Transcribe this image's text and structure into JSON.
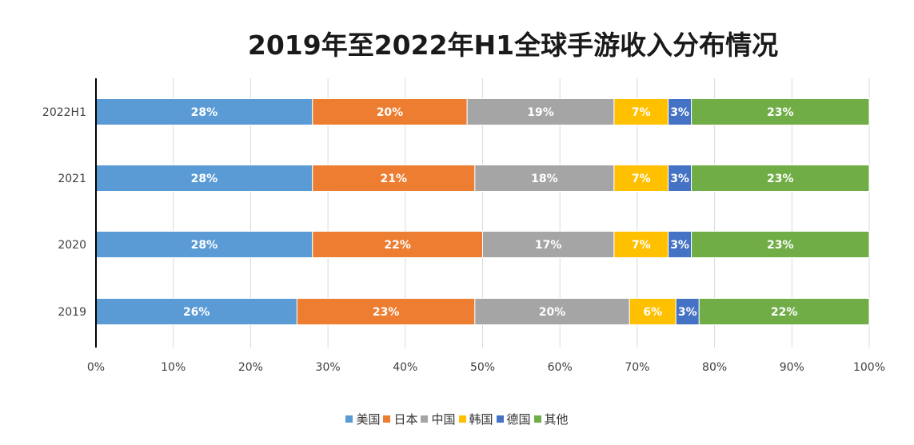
{
  "chart_data": {
    "type": "bar",
    "orientation": "horizontal",
    "stacked": true,
    "title": "2019年至2022年H1全球手游收入分布情况",
    "categories": [
      "2022H1",
      "2021",
      "2020",
      "2019"
    ],
    "series": [
      {
        "name": "美国",
        "color": "#5b9bd5",
        "values": [
          28,
          28,
          28,
          26
        ]
      },
      {
        "name": "日本",
        "color": "#ed7d31",
        "values": [
          20,
          21,
          22,
          23
        ]
      },
      {
        "name": "中国",
        "color": "#a5a5a5",
        "values": [
          19,
          18,
          17,
          20
        ]
      },
      {
        "name": "韩国",
        "color": "#ffc000",
        "values": [
          7,
          7,
          7,
          6
        ]
      },
      {
        "name": "德国",
        "color": "#4472c4",
        "values": [
          3,
          3,
          3,
          3
        ]
      },
      {
        "name": "其他",
        "color": "#70ad47",
        "values": [
          23,
          23,
          23,
          22
        ]
      }
    ],
    "xlim": [
      0,
      100
    ],
    "xticks": [
      "0%",
      "10%",
      "20%",
      "30%",
      "40%",
      "50%",
      "60%",
      "70%",
      "80%",
      "90%",
      "100%"
    ],
    "value_suffix": "%",
    "grid": true,
    "legend_position": "bottom"
  }
}
